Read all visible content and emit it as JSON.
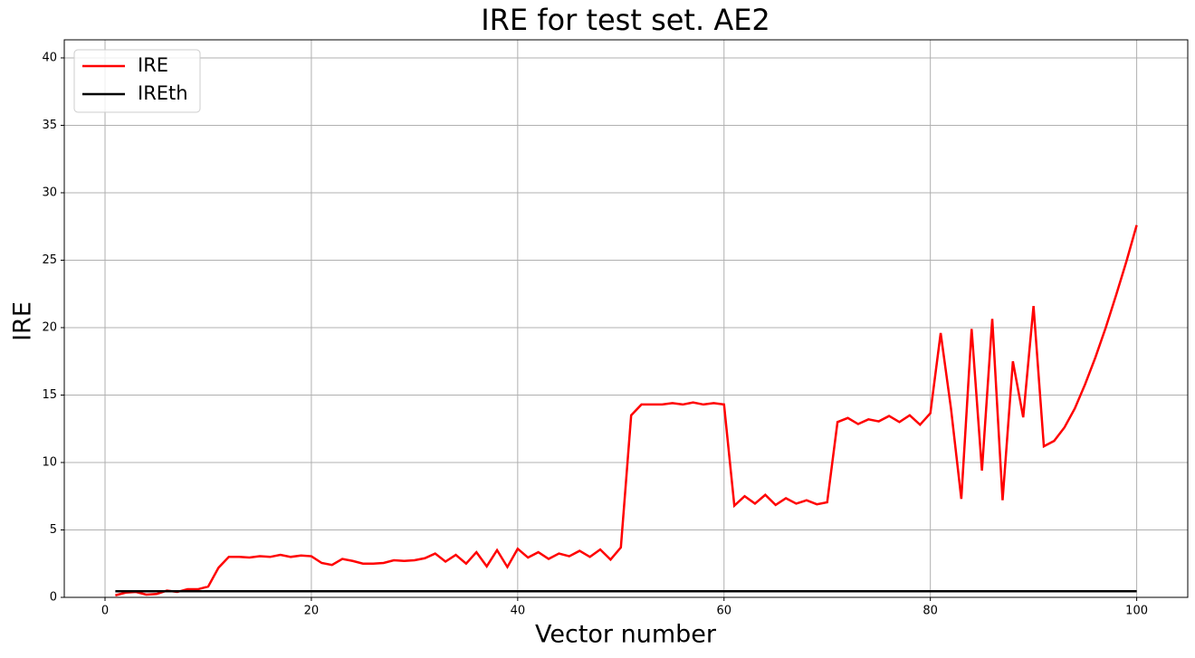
{
  "chart_data": {
    "type": "line",
    "title": "IRE for test set. AE2",
    "x_label": "Vector number",
    "y_label": "IRE",
    "x": [
      1,
      2,
      3,
      4,
      5,
      6,
      7,
      8,
      9,
      10,
      11,
      12,
      13,
      14,
      15,
      16,
      17,
      18,
      19,
      20,
      21,
      22,
      23,
      24,
      25,
      26,
      27,
      28,
      29,
      30,
      31,
      32,
      33,
      34,
      35,
      36,
      37,
      38,
      39,
      40,
      41,
      42,
      43,
      44,
      45,
      46,
      47,
      48,
      49,
      50,
      51,
      52,
      53,
      54,
      55,
      56,
      57,
      58,
      59,
      60,
      61,
      62,
      63,
      64,
      65,
      66,
      67,
      68,
      69,
      70,
      71,
      72,
      73,
      74,
      75,
      76,
      77,
      78,
      79,
      80,
      81,
      82,
      83,
      84,
      85,
      86,
      87,
      88,
      89,
      90,
      91,
      92,
      93,
      94,
      95,
      96,
      97,
      98,
      99,
      100
    ],
    "series": [
      {
        "name": "IRE",
        "color": "#ff0000",
        "values": [
          0.15,
          0.35,
          0.4,
          0.2,
          0.25,
          0.5,
          0.4,
          0.6,
          0.6,
          0.8,
          2.2,
          3.0,
          3.0,
          2.95,
          3.05,
          3.0,
          3.15,
          3.0,
          3.1,
          3.05,
          2.55,
          2.4,
          2.85,
          2.7,
          2.5,
          2.5,
          2.55,
          2.75,
          2.7,
          2.75,
          2.9,
          3.25,
          2.65,
          3.15,
          2.5,
          3.35,
          2.3,
          3.5,
          2.25,
          3.6,
          2.95,
          3.35,
          2.85,
          3.25,
          3.05,
          3.45,
          3.0,
          3.55,
          2.8,
          3.7,
          13.5,
          14.3,
          14.3,
          14.3,
          14.4,
          14.3,
          14.45,
          14.3,
          14.4,
          14.3,
          6.8,
          7.5,
          6.95,
          7.6,
          6.85,
          7.35,
          6.95,
          7.2,
          6.9,
          7.05,
          13.0,
          13.3,
          12.85,
          13.2,
          13.05,
          13.45,
          13.0,
          13.5,
          12.8,
          13.65,
          19.6,
          14.0,
          7.3,
          19.9,
          9.4,
          20.65,
          7.2,
          17.5,
          13.35,
          21.6,
          11.2,
          11.6,
          12.6,
          14.0,
          15.8,
          17.8,
          20.0,
          22.4,
          24.9,
          27.6
        ]
      },
      {
        "name": "IREth",
        "color": "#000000",
        "values": [
          0.45,
          0.45,
          0.45,
          0.45,
          0.45,
          0.45,
          0.45,
          0.45,
          0.45,
          0.45,
          0.45,
          0.45,
          0.45,
          0.45,
          0.45,
          0.45,
          0.45,
          0.45,
          0.45,
          0.45,
          0.45,
          0.45,
          0.45,
          0.45,
          0.45,
          0.45,
          0.45,
          0.45,
          0.45,
          0.45,
          0.45,
          0.45,
          0.45,
          0.45,
          0.45,
          0.45,
          0.45,
          0.45,
          0.45,
          0.45,
          0.45,
          0.45,
          0.45,
          0.45,
          0.45,
          0.45,
          0.45,
          0.45,
          0.45,
          0.45,
          0.45,
          0.45,
          0.45,
          0.45,
          0.45,
          0.45,
          0.45,
          0.45,
          0.45,
          0.45,
          0.45,
          0.45,
          0.45,
          0.45,
          0.45,
          0.45,
          0.45,
          0.45,
          0.45,
          0.45,
          0.45,
          0.45,
          0.45,
          0.45,
          0.45,
          0.45,
          0.45,
          0.45,
          0.45,
          0.45,
          0.45,
          0.45,
          0.45,
          0.45,
          0.45,
          0.45,
          0.45,
          0.45,
          0.45,
          0.45,
          0.45,
          0.45,
          0.45,
          0.45,
          0.45,
          0.45,
          0.45,
          0.45,
          0.45,
          0.45
        ]
      }
    ],
    "xlim": [
      -3.95,
      104.95
    ],
    "ylim": [
      0,
      41.34
    ],
    "xticks": [
      0,
      20,
      40,
      60,
      80,
      100
    ],
    "yticks": [
      0,
      5,
      10,
      15,
      20,
      25,
      30,
      35,
      40
    ],
    "grid": true,
    "legend_position": "upper-left"
  }
}
